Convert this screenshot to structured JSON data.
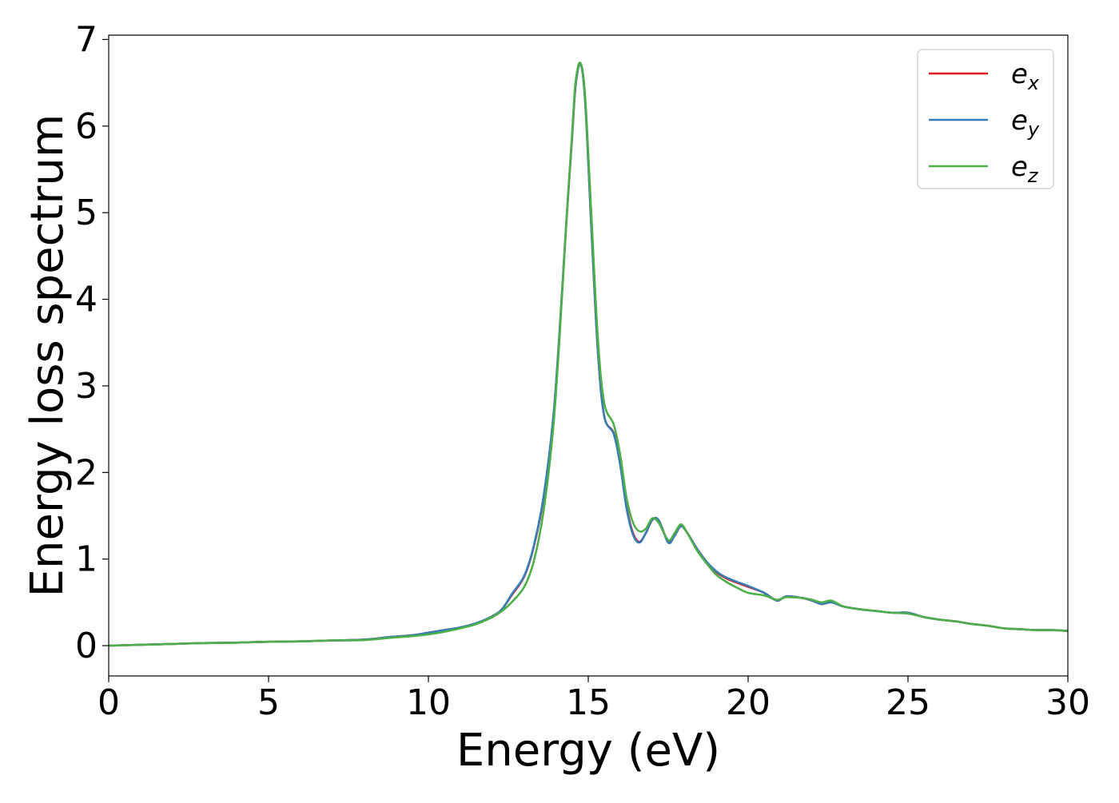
{
  "chart_data": {
    "type": "line",
    "title": "",
    "xlabel": "Energy (eV)",
    "ylabel": "Energy loss spectrum",
    "xlim": [
      0,
      30
    ],
    "ylim": [
      -0.35,
      7.05
    ],
    "xticks": [
      0,
      5,
      10,
      15,
      20,
      25,
      30
    ],
    "xtick_labels": [
      "0",
      "5",
      "10",
      "15",
      "20",
      "25",
      "30"
    ],
    "yticks": [
      0,
      1,
      2,
      3,
      4,
      5,
      6,
      7
    ],
    "ytick_labels": [
      "0",
      "1",
      "2",
      "3",
      "4",
      "5",
      "6",
      "7"
    ],
    "grid": false,
    "legend": {
      "position": "top-right",
      "entries": [
        {
          "base": "e",
          "sub": "x",
          "color": "#e41a1c"
        },
        {
          "base": "e",
          "sub": "y",
          "color": "#377eb8"
        },
        {
          "base": "e",
          "sub": "z",
          "color": "#4daf4a"
        }
      ]
    },
    "series": [
      {
        "name": "e_x",
        "color": "#e41a1c",
        "x": [
          0,
          1,
          2,
          3,
          4,
          5,
          6,
          7,
          8,
          8.8,
          9.5,
          10,
          10.5,
          11,
          11.5,
          12,
          12.3,
          12.6,
          13,
          13.3,
          13.6,
          13.9,
          14.1,
          14.3,
          14.5,
          14.6,
          14.75,
          14.9,
          15.1,
          15.3,
          15.5,
          15.8,
          16.0,
          16.2,
          16.4,
          16.6,
          16.8,
          17.0,
          17.2,
          17.5,
          17.7,
          17.9,
          18.1,
          18.4,
          18.7,
          19.0,
          19.3,
          19.7,
          20.0,
          20.5,
          20.9,
          21.2,
          21.7,
          22.0,
          22.3,
          22.6,
          23,
          23.5,
          24,
          24.5,
          25,
          25.5,
          26,
          26.5,
          27,
          27.5,
          28,
          28.5,
          29,
          29.5,
          30
        ],
        "y": [
          0.0,
          0.01,
          0.02,
          0.03,
          0.035,
          0.045,
          0.05,
          0.06,
          0.07,
          0.1,
          0.12,
          0.15,
          0.18,
          0.21,
          0.26,
          0.34,
          0.42,
          0.58,
          0.8,
          1.15,
          1.7,
          2.6,
          3.6,
          4.8,
          5.9,
          6.45,
          6.72,
          6.3,
          4.8,
          3.4,
          2.65,
          2.45,
          2.1,
          1.6,
          1.3,
          1.2,
          1.3,
          1.45,
          1.45,
          1.2,
          1.27,
          1.38,
          1.3,
          1.12,
          0.97,
          0.85,
          0.78,
          0.72,
          0.68,
          0.61,
          0.52,
          0.57,
          0.55,
          0.52,
          0.48,
          0.5,
          0.45,
          0.42,
          0.4,
          0.38,
          0.38,
          0.33,
          0.3,
          0.28,
          0.25,
          0.23,
          0.2,
          0.19,
          0.18,
          0.18,
          0.17
        ]
      },
      {
        "name": "e_y",
        "color": "#377eb8",
        "x": [
          0,
          1,
          2,
          3,
          4,
          5,
          6,
          7,
          8,
          8.8,
          9.5,
          10,
          10.5,
          11,
          11.5,
          12,
          12.3,
          12.6,
          13,
          13.3,
          13.6,
          13.9,
          14.1,
          14.3,
          14.5,
          14.6,
          14.75,
          14.9,
          15.1,
          15.3,
          15.5,
          15.8,
          16.0,
          16.2,
          16.4,
          16.6,
          16.8,
          17.0,
          17.2,
          17.5,
          17.7,
          17.9,
          18.1,
          18.4,
          18.7,
          19.0,
          19.3,
          19.7,
          20.0,
          20.5,
          20.9,
          21.2,
          21.7,
          22.0,
          22.3,
          22.6,
          23,
          23.5,
          24,
          24.5,
          25,
          25.5,
          26,
          26.5,
          27,
          27.5,
          28,
          28.5,
          29,
          29.5,
          30
        ],
        "y": [
          0.0,
          0.01,
          0.02,
          0.03,
          0.035,
          0.045,
          0.05,
          0.06,
          0.07,
          0.1,
          0.12,
          0.15,
          0.18,
          0.21,
          0.26,
          0.34,
          0.42,
          0.59,
          0.81,
          1.16,
          1.72,
          2.62,
          3.62,
          4.82,
          5.92,
          6.46,
          6.72,
          6.3,
          4.8,
          3.4,
          2.65,
          2.44,
          2.08,
          1.58,
          1.28,
          1.19,
          1.3,
          1.45,
          1.45,
          1.19,
          1.27,
          1.38,
          1.3,
          1.12,
          0.97,
          0.86,
          0.79,
          0.73,
          0.69,
          0.61,
          0.52,
          0.57,
          0.55,
          0.52,
          0.48,
          0.5,
          0.45,
          0.42,
          0.4,
          0.38,
          0.38,
          0.33,
          0.3,
          0.28,
          0.25,
          0.23,
          0.2,
          0.19,
          0.18,
          0.18,
          0.17
        ]
      },
      {
        "name": "e_z",
        "color": "#4daf4a",
        "x": [
          0,
          1,
          2,
          3,
          4,
          5,
          6,
          7,
          8,
          8.8,
          9.5,
          10,
          10.5,
          11,
          11.5,
          12,
          12.3,
          12.6,
          13,
          13.3,
          13.6,
          13.9,
          14.1,
          14.3,
          14.5,
          14.6,
          14.75,
          14.9,
          15.1,
          15.3,
          15.5,
          15.8,
          16.0,
          16.2,
          16.4,
          16.6,
          16.8,
          17.0,
          17.2,
          17.5,
          17.7,
          17.9,
          18.1,
          18.4,
          18.7,
          19.0,
          19.3,
          19.7,
          20.0,
          20.5,
          20.9,
          21.2,
          21.7,
          22.0,
          22.3,
          22.6,
          23,
          23.5,
          24,
          24.5,
          25,
          25.5,
          26,
          26.5,
          27,
          27.5,
          28,
          28.5,
          29,
          29.5,
          30
        ],
        "y": [
          0.0,
          0.01,
          0.02,
          0.03,
          0.035,
          0.045,
          0.05,
          0.06,
          0.065,
          0.09,
          0.11,
          0.13,
          0.16,
          0.2,
          0.25,
          0.33,
          0.4,
          0.5,
          0.68,
          0.98,
          1.55,
          2.5,
          3.55,
          4.8,
          5.95,
          6.5,
          6.73,
          6.35,
          4.95,
          3.55,
          2.8,
          2.55,
          2.2,
          1.7,
          1.42,
          1.32,
          1.35,
          1.47,
          1.42,
          1.22,
          1.3,
          1.4,
          1.3,
          1.1,
          0.95,
          0.82,
          0.74,
          0.66,
          0.61,
          0.58,
          0.53,
          0.56,
          0.55,
          0.53,
          0.5,
          0.52,
          0.45,
          0.42,
          0.4,
          0.38,
          0.37,
          0.33,
          0.3,
          0.28,
          0.25,
          0.23,
          0.2,
          0.19,
          0.18,
          0.18,
          0.17
        ]
      }
    ]
  }
}
